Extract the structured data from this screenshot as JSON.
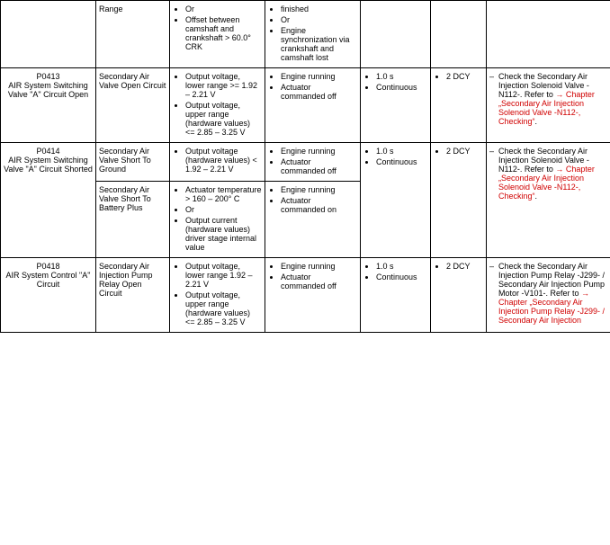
{
  "rows": [
    {
      "code": "",
      "name": "",
      "possible": "Range",
      "criteria": [
        "Or",
        "Offset between camshaft and crankshaft > 60.0° CRK"
      ],
      "secondary": [
        "finished",
        "Or",
        "Engine synchronization via crankshaft and camshaft lost"
      ],
      "monitor": "",
      "freq": "",
      "action": ""
    },
    {
      "code": "P0413",
      "name": "AIR System Switching Valve \"A\" Circuit Open",
      "possible": "Secondary Air Valve Open Circuit",
      "criteria": [
        "Output voltage, lower range >= 1.92 – 2.21 V",
        "Output voltage, upper range (hardware values) <= 2.85 – 3.25 V"
      ],
      "secondary": [
        "Engine running",
        "Actuator commanded off"
      ],
      "monitor": [
        "1.0 s",
        "Continuous"
      ],
      "freq": [
        "2 DCY"
      ],
      "action_plain": "Check the Secondary Air Injection Solenoid Valve -N112-. Refer to ",
      "action_link": "→ Chapter „Secondary Air Injection Solenoid Valve -N112-, Checking“",
      "action_suffix": "."
    },
    {
      "code": "P0414",
      "name": "AIR System Switching Valve \"A\" Circuit Shorted",
      "sub": [
        {
          "possible": "Secondary Air Valve Short To Ground",
          "criteria": [
            "Output voltage (hardware values) < 1.92 – 2.21 V"
          ],
          "secondary": [
            "Engine running",
            "Actuator commanded off"
          ]
        },
        {
          "possible": "Secondary Air Valve Short To Battery Plus",
          "criteria": [
            "Actuator temperature > 160 – 200° C",
            "Or",
            "Output current (hardware values) driver stage internal value"
          ],
          "secondary": [
            "Engine running",
            "Actuator commanded on"
          ]
        }
      ],
      "monitor": [
        "1.0 s",
        "Continuous"
      ],
      "freq": [
        "2 DCY"
      ],
      "action_plain": "Check the Secondary Air Injection Solenoid Valve -N112-. Refer to ",
      "action_link": "→ Chapter „Secondary Air Injection Solenoid Valve -N112-, Checking“",
      "action_suffix": "."
    },
    {
      "code": "P0418",
      "name": "AIR System Control \"A\" Circuit",
      "possible": "Secondary Air Injection Pump Relay Open Circuit",
      "criteria": [
        "Output voltage, lower range 1.92 – 2.21 V",
        "Output voltage, upper range (hardware values) <= 2.85 – 3.25 V"
      ],
      "secondary": [
        "Engine running",
        "Actuator commanded off"
      ],
      "monitor": [
        "1.0 s",
        "Continuous"
      ],
      "freq": [
        "2 DCY"
      ],
      "action_plain": "Check the Secondary Air Injection Pump Relay -J299- / Secondary Air Injection Pump Motor -V101-. Refer to ",
      "action_link": "→ Chapter „Secondary Air Injection Pump Relay -J299- / Secondary Air Injection",
      "action_suffix": ""
    }
  ]
}
